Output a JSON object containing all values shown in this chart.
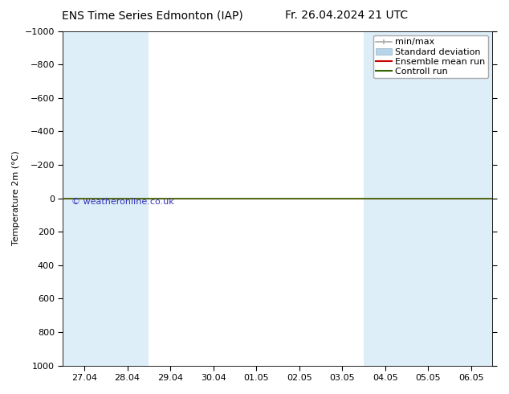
{
  "title_left": "ENS Time Series Edmonton (IAP)",
  "title_right": "Fr. 26.04.2024 21 UTC",
  "ylabel": "Temperature 2m (°C)",
  "watermark": "© weatheronline.co.uk",
  "ylim_bottom": 1000,
  "ylim_top": -1000,
  "yticks": [
    -1000,
    -800,
    -600,
    -400,
    -200,
    0,
    200,
    400,
    600,
    800,
    1000
  ],
  "xtick_labels": [
    "27.04",
    "28.04",
    "29.04",
    "30.04",
    "01.05",
    "02.05",
    "03.05",
    "04.05",
    "05.05",
    "06.05"
  ],
  "xtick_positions": [
    0,
    1,
    2,
    3,
    4,
    5,
    6,
    7,
    8,
    9
  ],
  "x_min": -0.5,
  "x_max": 9.5,
  "blue_bands": [
    [
      -0.5,
      0.5
    ],
    [
      0.5,
      1.5
    ],
    [
      6.5,
      7.5
    ],
    [
      7.5,
      8.5
    ],
    [
      8.5,
      9.5
    ]
  ],
  "band_color": "#ddeef8",
  "control_run_y": 0,
  "control_run_color": "#336600",
  "ensemble_mean_color": "#cc0000",
  "minmax_color": "#aaaaaa",
  "stddev_color": "#b8d4e8",
  "legend_labels": [
    "min/max",
    "Standard deviation",
    "Ensemble mean run",
    "Controll run"
  ],
  "background_color": "#ffffff",
  "plot_bg_color": "#ffffff",
  "title_fontsize": 10,
  "axis_fontsize": 8,
  "tick_fontsize": 8,
  "watermark_color": "#3333bb",
  "watermark_fontsize": 8
}
